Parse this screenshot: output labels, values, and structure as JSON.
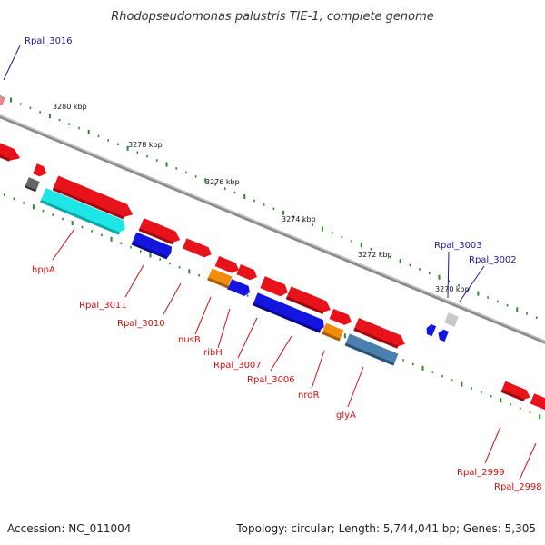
{
  "title": "Rhodopseudomonas palustris TIE-1, complete genome",
  "footer": {
    "accession": "Accession: NC_011004",
    "topology": "Topology: circular; Length: 5,744,041 bp; Genes: 5,305"
  },
  "colors": {
    "backbone": "#888888",
    "tick": "#2a8a2a",
    "forward_gene": "#e8121b",
    "blue_gene": "#1515e0",
    "orange_gene": "#f28c0a",
    "cyan_gene": "#1fe6e6",
    "steel_gene": "#4a7fb0",
    "gray_gene": "#666666",
    "lightgray_gene": "#c8c8c8",
    "label_red": "#cc1111",
    "label_blue": "#1a1aa0"
  },
  "kbp_markers": [
    "3280 kbp",
    "3278 kbp",
    "3276 kbp",
    "3274 kbp",
    "3272 kbp",
    "3270 kbp"
  ],
  "gene_labels": [
    {
      "text": "Rpal_3016",
      "color": "label_blue"
    },
    {
      "text": "hppA",
      "color": "label_red"
    },
    {
      "text": "Rpal_3011",
      "color": "label_red"
    },
    {
      "text": "Rpal_3010",
      "color": "label_red"
    },
    {
      "text": "nusB",
      "color": "label_red"
    },
    {
      "text": "ribH",
      "color": "label_red"
    },
    {
      "text": "Rpal_3007",
      "color": "label_red"
    },
    {
      "text": "Rpal_3006",
      "color": "label_red"
    },
    {
      "text": "nrdR",
      "color": "label_red"
    },
    {
      "text": "glyA",
      "color": "label_red"
    },
    {
      "text": "Rpal_3003",
      "color": "label_blue"
    },
    {
      "text": "Rpal_3002",
      "color": "label_blue"
    },
    {
      "text": "Rpal_2999",
      "color": "label_red"
    },
    {
      "text": "Rpal_2998",
      "color": "label_red"
    }
  ]
}
